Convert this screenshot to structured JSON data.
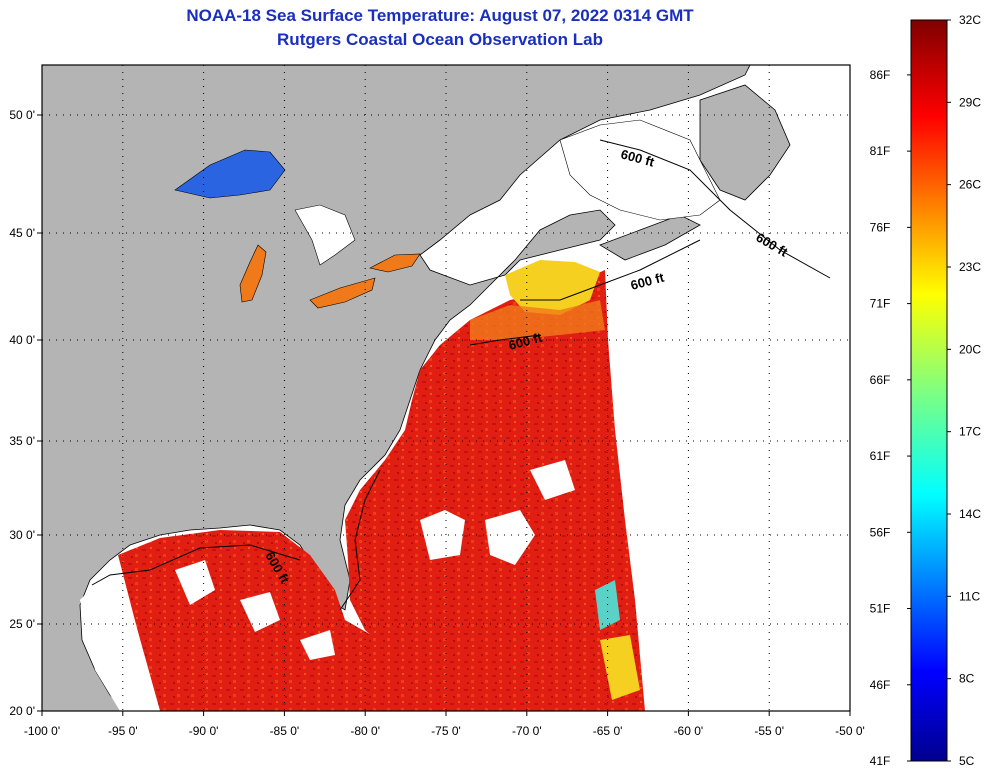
{
  "map": {
    "title": "NOAA-18 Sea Surface Temperature:  August 07, 2022 0314 GMT",
    "subtitle": "Rutgers Coastal Ocean Observation Lab",
    "lon_labels": [
      "-100 0'",
      "-95 0'",
      "-90 0'",
      "-85 0'",
      "-80 0'",
      "-75 0'",
      "-70 0'",
      "-65 0'",
      "-60 0'",
      "-55 0'",
      "-50 0'"
    ],
    "lat_labels": [
      "50 0'",
      "45 0'",
      "40 0'",
      "35 0'",
      "30 0'",
      "25 0'",
      "20 0'"
    ],
    "contour_labels": [
      "600 ft",
      "600 ft",
      "600 ft",
      "600 ft",
      "600 ft"
    ],
    "colors": {
      "land": "#b4b4b4",
      "water_hot": "#e01e12",
      "water_warm": "#f06a10",
      "cloud": "#ffffff",
      "title": "#1a2fbf"
    }
  },
  "colorbar": {
    "celsius": [
      "32C",
      "29C",
      "26C",
      "23C",
      "20C",
      "17C",
      "14C",
      "11C",
      "8C",
      "5C"
    ],
    "fahrenheit": [
      "86F",
      "81F",
      "76F",
      "71F",
      "66F",
      "61F",
      "56F",
      "51F",
      "46F",
      "41F"
    ],
    "min_c": 5,
    "max_c": 32
  }
}
